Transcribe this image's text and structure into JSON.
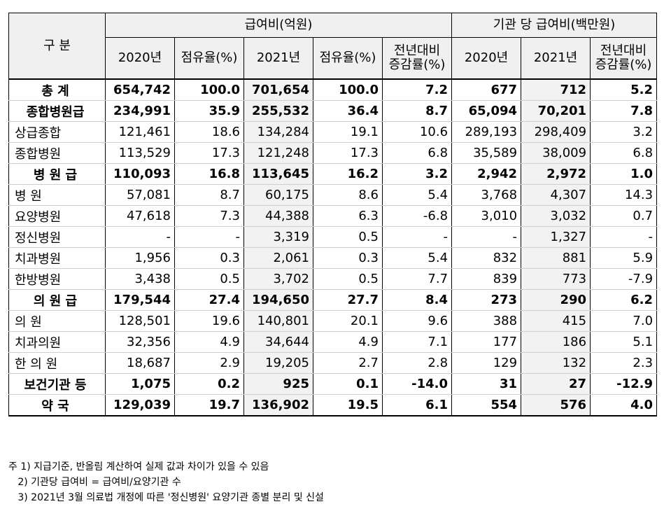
{
  "header": {
    "category": "구 분",
    "group_payment": "급여비(억원)",
    "group_per_inst": "기관 당 급여비(백만원)",
    "col_2020": "2020년",
    "col_share_1": "점유율(%)",
    "col_2021": "2021년",
    "col_share_2": "점유율(%)",
    "col_yoy_1": "전년대비 증감률(%)",
    "col_inst_2020": "2020년",
    "col_inst_2021": "2021년",
    "col_yoy_2": "전년대비 증감률(%)"
  },
  "rows": [
    {
      "label": "총 계",
      "v": [
        "654,742",
        "100.0",
        "701,654",
        "100.0",
        "7.2",
        "677",
        "712",
        "5.2"
      ]
    },
    {
      "label": "종합병원급",
      "v": [
        "234,991",
        "35.9",
        "255,532",
        "36.4",
        "8.7",
        "65,094",
        "70,201",
        "7.8"
      ]
    },
    {
      "label": "상급종합",
      "v": [
        "121,461",
        "18.6",
        "134,284",
        "19.1",
        "10.6",
        "289,193",
        "298,409",
        "3.2"
      ]
    },
    {
      "label": "종합병원",
      "v": [
        "113,529",
        "17.3",
        "121,248",
        "17.3",
        "6.8",
        "35,589",
        "38,009",
        "6.8"
      ]
    },
    {
      "label": "병 원 급",
      "v": [
        "110,093",
        "16.8",
        "113,645",
        "16.2",
        "3.2",
        "2,942",
        "2,972",
        "1.0"
      ]
    },
    {
      "label": "병 원",
      "v": [
        "57,081",
        "8.7",
        "60,175",
        "8.6",
        "5.4",
        "3,768",
        "4,307",
        "14.3"
      ]
    },
    {
      "label": "요양병원",
      "v": [
        "47,618",
        "7.3",
        "44,388",
        "6.3",
        "-6.8",
        "3,010",
        "3,032",
        "0.7"
      ]
    },
    {
      "label": "정신병원",
      "v": [
        "-",
        "-",
        "3,319",
        "0.5",
        "-",
        "-",
        "1,327",
        "-"
      ]
    },
    {
      "label": "치과병원",
      "v": [
        "1,956",
        "0.3",
        "2,061",
        "0.3",
        "5.4",
        "832",
        "881",
        "5.9"
      ]
    },
    {
      "label": "한방병원",
      "v": [
        "3,438",
        "0.5",
        "3,702",
        "0.5",
        "7.7",
        "839",
        "773",
        "-7.9"
      ]
    },
    {
      "label": "의 원 급",
      "v": [
        "179,544",
        "27.4",
        "194,650",
        "27.7",
        "8.4",
        "273",
        "290",
        "6.2"
      ]
    },
    {
      "label": "의 원",
      "v": [
        "128,501",
        "19.6",
        "140,801",
        "20.1",
        "9.6",
        "388",
        "415",
        "7.0"
      ]
    },
    {
      "label": "치과의원",
      "v": [
        "32,356",
        "4.9",
        "34,644",
        "4.9",
        "7.1",
        "177",
        "186",
        "5.1"
      ]
    },
    {
      "label": "한 의 원",
      "v": [
        "18,687",
        "2.9",
        "19,205",
        "2.7",
        "2.8",
        "129",
        "132",
        "2.3"
      ]
    },
    {
      "label": "보건기관 등",
      "v": [
        "1,075",
        "0.2",
        "925",
        "0.1",
        "-14.0",
        "31",
        "27",
        "-12.9"
      ]
    },
    {
      "label": "약 국",
      "v": [
        "129,039",
        "19.7",
        "136,902",
        "19.5",
        "6.1",
        "554",
        "576",
        "4.0"
      ]
    }
  ],
  "notes": [
    "주 1) 지급기준, 반올림 계산하여 실제 값과 차이가 있을 수 있음",
    "   2) 기관당 급여비 = 급여비/요양기관 수",
    "   3) 2021년 3월 의료법 개정에 따른 '정신병원' 요양기관 종별 분리 및 신설"
  ]
}
